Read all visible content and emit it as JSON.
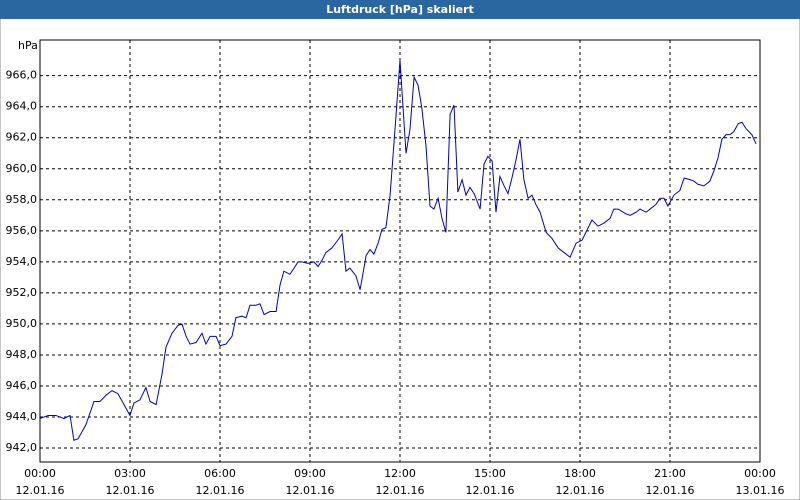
{
  "chart_data": {
    "type": "line",
    "title": "Luftdruck [hPa] skaliert",
    "y_unit": "hPa",
    "xlim": [
      0,
      24
    ],
    "ylim": [
      941.1,
      968.3
    ],
    "xticks": [
      {
        "value": 0,
        "label": "00:00"
      },
      {
        "value": 3,
        "label": "03:00"
      },
      {
        "value": 6,
        "label": "06:00"
      },
      {
        "value": 9,
        "label": "09:00"
      },
      {
        "value": 12,
        "label": "12:00"
      },
      {
        "value": 15,
        "label": "15:00"
      },
      {
        "value": 18,
        "label": "18:00"
      },
      {
        "value": 21,
        "label": "21:00"
      },
      {
        "value": 24,
        "label": "00:00"
      }
    ],
    "xtick_dates": [
      "12.01.16",
      "12.01.16",
      "12.01.16",
      "12.01.16",
      "12.01.16",
      "12.01.16",
      "12.01.16",
      "12.01.16",
      "13.01.16"
    ],
    "yticks": [
      {
        "value": 942,
        "label": "942,0"
      },
      {
        "value": 944,
        "label": "944,0"
      },
      {
        "value": 946,
        "label": "946,0"
      },
      {
        "value": 948,
        "label": "948,0"
      },
      {
        "value": 950,
        "label": "950,0"
      },
      {
        "value": 952,
        "label": "952,0"
      },
      {
        "value": 954,
        "label": "954,0"
      },
      {
        "value": 956,
        "label": "956,0"
      },
      {
        "value": 958,
        "label": "958,0"
      },
      {
        "value": 960,
        "label": "960,0"
      },
      {
        "value": 962,
        "label": "962,0"
      },
      {
        "value": 964,
        "label": "964,0"
      },
      {
        "value": 966,
        "label": "966,0"
      }
    ],
    "grid": true,
    "color": "#0000c0",
    "x": [
      0,
      0.27,
      0.53,
      0.8,
      1.0,
      1.13,
      1.27,
      1.53,
      1.8,
      2.0,
      2.2,
      2.4,
      2.6,
      2.8,
      3.0,
      3.13,
      3.33,
      3.53,
      3.67,
      3.87,
      4.07,
      4.2,
      4.4,
      4.6,
      4.73,
      4.87,
      5.0,
      5.2,
      5.4,
      5.53,
      5.67,
      5.87,
      6.0,
      6.2,
      6.4,
      6.53,
      6.73,
      6.87,
      7.0,
      7.2,
      7.33,
      7.47,
      7.67,
      7.87,
      8.0,
      8.13,
      8.33,
      8.47,
      8.6,
      8.73,
      8.93,
      9.13,
      9.27,
      9.4,
      9.53,
      9.73,
      9.93,
      10.07,
      10.2,
      10.33,
      10.53,
      10.67,
      10.87,
      11.0,
      11.13,
      11.27,
      11.4,
      11.53,
      11.67,
      11.87,
      12.0,
      12.2,
      12.33,
      12.47,
      12.6,
      12.73,
      12.87,
      13.0,
      13.13,
      13.27,
      13.4,
      13.53,
      13.67,
      13.8,
      13.93,
      14.07,
      14.2,
      14.33,
      14.47,
      14.67,
      14.8,
      14.93,
      15.07,
      15.2,
      15.33,
      15.47,
      15.6,
      15.73,
      15.87,
      16.0,
      16.13,
      16.27,
      16.4,
      16.53,
      16.67,
      16.87,
      17.07,
      17.27,
      17.47,
      17.67,
      17.87,
      18.07,
      18.27,
      18.4,
      18.6,
      18.8,
      19.0,
      19.13,
      19.27,
      19.53,
      19.67,
      19.87,
      20.0,
      20.2,
      20.4,
      20.53,
      20.67,
      20.8,
      20.93,
      21.13,
      21.33,
      21.47,
      21.67,
      21.8,
      21.93,
      22.13,
      22.33,
      22.47,
      22.6,
      22.73,
      22.87,
      23.0,
      23.13,
      23.27,
      23.4,
      23.53,
      23.73,
      23.87
    ],
    "values": [
      943.9,
      944.1,
      944.1,
      943.9,
      944.1,
      942.5,
      942.6,
      943.5,
      945.0,
      945.0,
      945.4,
      945.7,
      945.5,
      944.8,
      944.1,
      944.9,
      945.1,
      945.9,
      945.0,
      944.8,
      946.8,
      948.5,
      949.4,
      949.9,
      950.0,
      949.2,
      948.7,
      948.8,
      949.4,
      948.7,
      949.2,
      949.2,
      948.6,
      948.7,
      949.2,
      950.4,
      950.5,
      950.4,
      951.2,
      951.2,
      951.3,
      950.6,
      950.8,
      950.8,
      952.5,
      953.4,
      953.2,
      953.6,
      954.0,
      954.0,
      953.9,
      954.0,
      953.7,
      954.1,
      954.6,
      954.9,
      955.4,
      955.8,
      953.4,
      953.6,
      953.1,
      952.2,
      954.4,
      954.8,
      954.5,
      955.2,
      956.1,
      956.2,
      958.3,
      963.5,
      967.0,
      961.0,
      962.5,
      965.9,
      965.4,
      963.9,
      961.4,
      957.6,
      957.4,
      958.1,
      956.8,
      955.9,
      963.5,
      964.1,
      958.5,
      959.3,
      958.3,
      958.8,
      958.4,
      957.4,
      960.3,
      960.8,
      960.5,
      957.2,
      959.5,
      958.9,
      958.4,
      959.4,
      960.6,
      961.9,
      959.3,
      958.1,
      958.3,
      957.7,
      957.2,
      955.9,
      955.5,
      954.9,
      954.6,
      954.3,
      955.2,
      955.4,
      956.2,
      956.7,
      956.3,
      956.5,
      956.8,
      957.4,
      957.4,
      957.1,
      957.0,
      957.2,
      957.4,
      957.2,
      957.5,
      957.7,
      958.1,
      958.1,
      957.6,
      958.3,
      958.6,
      959.4,
      959.3,
      959.2,
      959.0,
      958.9,
      959.2,
      959.9,
      960.7,
      961.9,
      962.2,
      962.2,
      962.4,
      962.9,
      963.0,
      962.6,
      962.2,
      961.6
    ]
  }
}
